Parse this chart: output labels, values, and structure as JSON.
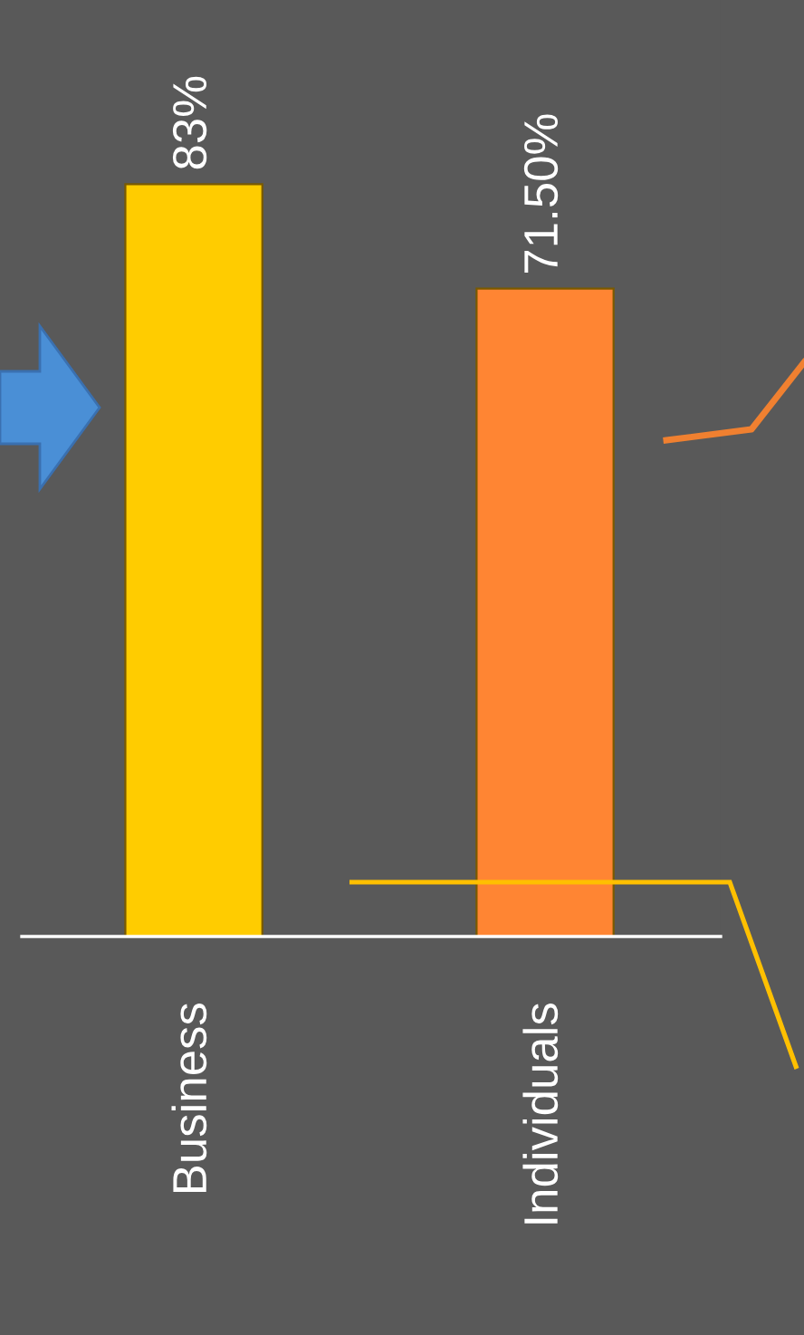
{
  "chart_data": {
    "type": "bar",
    "categories": [
      "Business",
      "Individuals"
    ],
    "values": [
      83,
      71.5
    ],
    "colors": [
      "#ffcc00",
      "#ff8533"
    ],
    "value_labels": [
      "83%",
      "71.50%"
    ]
  }
}
